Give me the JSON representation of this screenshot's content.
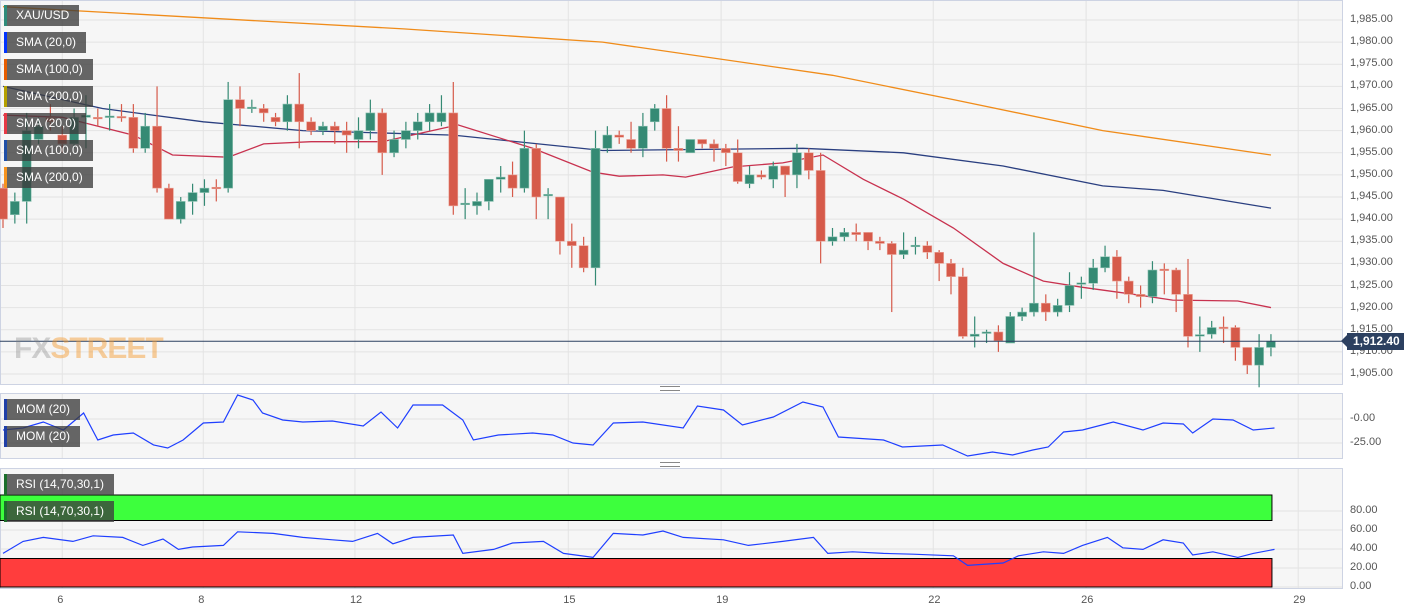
{
  "legend": {
    "main": [
      {
        "label": "XAU/USD",
        "color": "#2e8b7a"
      },
      {
        "label": "SMA (20,0)",
        "color": "#0033ff"
      },
      {
        "label": "SMA (100,0)",
        "color": "#e65c00"
      },
      {
        "label": "SMA (200,0)",
        "color": "#b5a000"
      },
      {
        "label": "SMA (20,0)",
        "color": "#e63946"
      },
      {
        "label": "SMA (100,0)",
        "color": "#1f4fa8"
      },
      {
        "label": "SMA (200,0)",
        "color": "#f7931e"
      }
    ],
    "mom": [
      {
        "label": "MOM (20)",
        "color": "#1f3fa8"
      },
      {
        "label": "MOM (20)",
        "color": "#1f3fa8"
      }
    ],
    "rsi": [
      {
        "label": "RSI (14,70,30,1)",
        "color": "#1a6e2a"
      },
      {
        "label": "RSI (14,70,30,1)",
        "color": "#1a6e2a"
      }
    ]
  },
  "watermark": {
    "a": "FX",
    "b": "STREET"
  },
  "current_price": "1,912.40",
  "chart_data": {
    "type": "candlestick",
    "symbol": "XAU/USD",
    "colors": {
      "up": "#358a74",
      "down": "#d65a4a",
      "sma20": "#c8324f",
      "sma100": "#2a3f80",
      "sma200": "#f08c1a",
      "mom": "#1f3fff",
      "rsi": "#1f3fff",
      "overbought": "#3dff3d",
      "oversold": "#ff3d3d",
      "price_line": "#2c4060"
    },
    "x_ticks": [
      {
        "label": "6",
        "idx": 5
      },
      {
        "label": "8",
        "idx": 16.9
      },
      {
        "label": "12",
        "idx": 29.7
      },
      {
        "label": "15",
        "idx": 47.7
      },
      {
        "label": "19",
        "idx": 60.6
      },
      {
        "label": "22",
        "idx": 78.5
      },
      {
        "label": "26",
        "idx": 91.4
      },
      {
        "label": "29",
        "idx": 109.3
      }
    ],
    "main_y_ticks": [
      "1,985.00",
      "1,980.00",
      "1,975.00",
      "1,970.00",
      "1,965.00",
      "1,960.00",
      "1,955.00",
      "1,950.00",
      "1,945.00",
      "1,940.00",
      "1,935.00",
      "1,930.00",
      "1,925.00",
      "1,920.00",
      "1,915.00",
      "1,910.00",
      "1,905.00"
    ],
    "main_y_values": [
      1985,
      1980,
      1975,
      1970,
      1965,
      1960,
      1955,
      1950,
      1945,
      1940,
      1935,
      1930,
      1925,
      1920,
      1915,
      1910,
      1905
    ],
    "price_current": 1912.4,
    "ohlc": [
      [
        1947,
        1948,
        1938,
        1940
      ],
      [
        1941,
        1946,
        1939,
        1944
      ],
      [
        1944,
        1964,
        1939,
        1960
      ],
      [
        1958,
        1963,
        1957,
        1961
      ],
      [
        1963,
        1966,
        1960,
        1962
      ],
      [
        1959,
        1961,
        1955,
        1957
      ],
      [
        1957,
        1965,
        1956,
        1963
      ],
      [
        1963,
        1968,
        1956,
        1963.5
      ],
      [
        1963,
        1965,
        1961,
        1962.8
      ],
      [
        1963,
        1966,
        1960,
        1963.3
      ],
      [
        1963.2,
        1966,
        1962,
        1963
      ],
      [
        1963,
        1966,
        1955,
        1956
      ],
      [
        1956,
        1964,
        1955,
        1961
      ],
      [
        1961,
        1970,
        1946,
        1947
      ],
      [
        1947,
        1948,
        1940,
        1940
      ],
      [
        1940,
        1945,
        1939,
        1944
      ],
      [
        1944,
        1948,
        1941,
        1946
      ],
      [
        1946,
        1949,
        1943,
        1947
      ],
      [
        1947.2,
        1949,
        1944,
        1947
      ],
      [
        1947,
        1971,
        1946,
        1967
      ],
      [
        1967,
        1970,
        1961,
        1965
      ],
      [
        1965,
        1967,
        1964,
        1965.3
      ],
      [
        1965,
        1966,
        1962,
        1964
      ],
      [
        1963,
        1964,
        1961,
        1962
      ],
      [
        1962,
        1968,
        1960,
        1966
      ],
      [
        1966,
        1973,
        1956,
        1962
      ],
      [
        1962,
        1963,
        1959,
        1960
      ],
      [
        1960,
        1962,
        1959,
        1961
      ],
      [
        1961,
        1962,
        1957,
        1960
      ],
      [
        1960,
        1962,
        1955,
        1959
      ],
      [
        1958,
        1963,
        1956,
        1960
      ],
      [
        1960,
        1967,
        1958,
        1964
      ],
      [
        1964,
        1965,
        1950,
        1955
      ],
      [
        1955,
        1960,
        1954,
        1958
      ],
      [
        1958,
        1962,
        1956,
        1960
      ],
      [
        1960,
        1964,
        1958,
        1962
      ],
      [
        1962,
        1966,
        1960,
        1964
      ],
      [
        1962,
        1968,
        1961,
        1964
      ],
      [
        1964,
        1971,
        1941,
        1943
      ],
      [
        1943.3,
        1947,
        1940,
        1943.6
      ],
      [
        1943,
        1946,
        1941,
        1944
      ],
      [
        1944,
        1949,
        1942,
        1949
      ],
      [
        1949,
        1952,
        1946,
        1949.5
      ],
      [
        1950,
        1953,
        1945,
        1947
      ],
      [
        1947,
        1960,
        1946,
        1956
      ],
      [
        1956,
        1957,
        1940,
        1945
      ],
      [
        1945.3,
        1947,
        1940,
        1945.6
      ],
      [
        1945,
        1945,
        1932,
        1935
      ],
      [
        1935,
        1939,
        1929,
        1934
      ],
      [
        1934,
        1936,
        1928,
        1929
      ],
      [
        1929,
        1960,
        1925,
        1956
      ],
      [
        1956,
        1961,
        1955,
        1959
      ],
      [
        1959,
        1960,
        1957,
        1958.5
      ],
      [
        1958,
        1962,
        1955,
        1956
      ],
      [
        1956,
        1964,
        1954,
        1961
      ],
      [
        1962,
        1966,
        1960,
        1965
      ],
      [
        1965,
        1968,
        1953,
        1956
      ],
      [
        1956,
        1961,
        1953,
        1955.5
      ],
      [
        1955,
        1958,
        1955,
        1958
      ],
      [
        1958,
        1958,
        1956,
        1957
      ],
      [
        1957,
        1958,
        1953,
        1956
      ],
      [
        1956,
        1957,
        1952,
        1955
      ],
      [
        1955,
        1958,
        1948,
        1948.5
      ],
      [
        1948,
        1952,
        1947,
        1950
      ],
      [
        1950,
        1951,
        1949,
        1949.5
      ],
      [
        1949,
        1953,
        1947,
        1952
      ],
      [
        1952,
        1952,
        1945,
        1950
      ],
      [
        1950,
        1957,
        1947,
        1955
      ],
      [
        1955,
        1956,
        1949,
        1951
      ],
      [
        1951,
        1955,
        1930,
        1935
      ],
      [
        1935,
        1938,
        1934,
        1936
      ],
      [
        1936,
        1938,
        1935,
        1937
      ],
      [
        1937,
        1939,
        1935,
        1936.5
      ],
      [
        1937,
        1937,
        1933,
        1935
      ],
      [
        1935,
        1936,
        1933,
        1934.5
      ],
      [
        1934.5,
        1935,
        1919,
        1932
      ],
      [
        1932,
        1937,
        1931,
        1933
      ],
      [
        1933.8,
        1936,
        1932,
        1934.1
      ],
      [
        1934,
        1935,
        1931,
        1932.5
      ],
      [
        1932.5,
        1933,
        1926,
        1930
      ],
      [
        1930,
        1931,
        1923,
        1927
      ],
      [
        1927,
        1929,
        1913,
        1913.5
      ],
      [
        1913.5,
        1918,
        1911,
        1914
      ],
      [
        1914.2,
        1915,
        1912,
        1914.5
      ],
      [
        1914.5,
        1916,
        1910,
        1912.5
      ],
      [
        1912,
        1919,
        1912,
        1918
      ],
      [
        1918,
        1920,
        1917,
        1919
      ],
      [
        1919,
        1937,
        1918,
        1921
      ],
      [
        1921,
        1923,
        1917,
        1919
      ],
      [
        1919,
        1922,
        1918,
        1920.5
      ],
      [
        1920.5,
        1928,
        1919,
        1925
      ],
      [
        1925.3,
        1927,
        1922,
        1925.6
      ],
      [
        1925.5,
        1931,
        1924,
        1929
      ],
      [
        1929,
        1934,
        1928,
        1931.5
      ],
      [
        1931.5,
        1933,
        1922,
        1926
      ],
      [
        1926,
        1927,
        1921,
        1923
      ],
      [
        1923,
        1925,
        1920,
        1922.5
      ],
      [
        1922.5,
        1930.5,
        1921,
        1928.5
      ],
      [
        1928.7,
        1930,
        1923,
        1928.4
      ],
      [
        1928.5,
        1929,
        1919,
        1923
      ],
      [
        1923,
        1931,
        1911,
        1913.5
      ],
      [
        1913.6,
        1918,
        1910,
        1913.9
      ],
      [
        1914,
        1917,
        1913,
        1915.5
      ],
      [
        1915.6,
        1918,
        1912,
        1915.4
      ],
      [
        1915.5,
        1916,
        1908,
        1911
      ],
      [
        1911,
        1911,
        1905,
        1907
      ],
      [
        1907,
        1914,
        1902,
        1911
      ],
      [
        1911,
        1914,
        1909,
        1912.4
      ]
    ],
    "sma20": [
      [
        0,
        1963.5
      ],
      [
        5,
        1963
      ],
      [
        11,
        1959
      ],
      [
        14.3,
        1954.5
      ],
      [
        19,
        1954
      ],
      [
        22,
        1957
      ],
      [
        26,
        1957.5
      ],
      [
        32,
        1957.5
      ],
      [
        38.4,
        1961.3
      ],
      [
        44.7,
        1956
      ],
      [
        49.8,
        1950.6
      ],
      [
        52,
        1949.7
      ],
      [
        55.7,
        1950
      ],
      [
        57.6,
        1949.5
      ],
      [
        61.6,
        1951.8
      ],
      [
        65.8,
        1952.7
      ],
      [
        69.2,
        1954.5
      ],
      [
        72.6,
        1949
      ],
      [
        76,
        1944.5
      ],
      [
        80.2,
        1938
      ],
      [
        84.4,
        1930
      ],
      [
        87.8,
        1926
      ],
      [
        91.1,
        1924.6
      ],
      [
        95.4,
        1923
      ],
      [
        98.7,
        1921.7
      ],
      [
        101.3,
        1921.6
      ],
      [
        104.2,
        1921.5
      ],
      [
        107,
        1920
      ]
    ],
    "sma100": [
      [
        0,
        1970
      ],
      [
        8.4,
        1965
      ],
      [
        16.9,
        1962
      ],
      [
        25.3,
        1960
      ],
      [
        38,
        1959
      ],
      [
        50.6,
        1955.5
      ],
      [
        67.5,
        1956
      ],
      [
        76,
        1955
      ],
      [
        84.4,
        1952
      ],
      [
        92.8,
        1947.5
      ],
      [
        97.9,
        1946.5
      ],
      [
        107,
        1942.5
      ]
    ],
    "sma200": [
      [
        0,
        1988
      ],
      [
        33.8,
        1983
      ],
      [
        50.6,
        1980
      ],
      [
        70,
        1972.5
      ],
      [
        80.2,
        1967
      ],
      [
        92.8,
        1960
      ],
      [
        107,
        1954.5
      ]
    ],
    "mom": {
      "y_ticks": [
        "-0.00",
        "-25.00"
      ],
      "y_values": [
        0,
        -25
      ],
      "ylim": [
        -40,
        27
      ],
      "values": [
        [
          0,
          -11.5
        ],
        [
          1.7,
          -9.4
        ],
        [
          3.4,
          -3.1
        ],
        [
          5.1,
          -11.5
        ],
        [
          6.8,
          6.3
        ],
        [
          8,
          -21.9
        ],
        [
          9.3,
          -16.7
        ],
        [
          11,
          -14.6
        ],
        [
          12.7,
          -27
        ],
        [
          13.9,
          -30.2
        ],
        [
          15.2,
          -21.9
        ],
        [
          16.9,
          -4.2
        ],
        [
          18.6,
          -3.1
        ],
        [
          19.8,
          25
        ],
        [
          21.1,
          19.8
        ],
        [
          21.9,
          6.3
        ],
        [
          23.6,
          -1
        ],
        [
          25.3,
          -3.1
        ],
        [
          27.8,
          -2.1
        ],
        [
          30.4,
          -7.3
        ],
        [
          31.9,
          7.3
        ],
        [
          33.3,
          -9.4
        ],
        [
          34.6,
          14.6
        ],
        [
          37.1,
          14.6
        ],
        [
          38.8,
          -1
        ],
        [
          39.7,
          -21.9
        ],
        [
          41.8,
          -16.7
        ],
        [
          44.7,
          -14.6
        ],
        [
          46.4,
          -16.7
        ],
        [
          48.1,
          -25
        ],
        [
          49.8,
          -27.1
        ],
        [
          51.5,
          -4.2
        ],
        [
          54,
          -3.1
        ],
        [
          57.4,
          -9.4
        ],
        [
          58.6,
          13.5
        ],
        [
          60.8,
          9.4
        ],
        [
          62.4,
          -6.3
        ],
        [
          65,
          2.1
        ],
        [
          67.5,
          17.7
        ],
        [
          69.2,
          12.5
        ],
        [
          70.5,
          -18.8
        ],
        [
          74.3,
          -21.9
        ],
        [
          75.9,
          -29.2
        ],
        [
          79.3,
          -27.1
        ],
        [
          81.4,
          -38.5
        ],
        [
          83.5,
          -34.4
        ],
        [
          85.2,
          -37.5
        ],
        [
          86.9,
          -32.3
        ],
        [
          88.2,
          -29.2
        ],
        [
          89.5,
          -13.5
        ],
        [
          91.1,
          -11.5
        ],
        [
          93.7,
          -3.1
        ],
        [
          96.2,
          -11.5
        ],
        [
          97.9,
          -4.2
        ],
        [
          99.6,
          -5.2
        ],
        [
          100.4,
          -14.6
        ],
        [
          102.1,
          0
        ],
        [
          103.8,
          -1
        ],
        [
          105.5,
          -11.5
        ],
        [
          107.3,
          -9.4
        ]
      ]
    },
    "rsi": {
      "y_ticks": [
        "80.00",
        "60.00",
        "40.00",
        "20.00",
        "0.00"
      ],
      "y_values": [
        80,
        60,
        40,
        20,
        0
      ],
      "ylim": [
        0,
        100
      ],
      "overbought": [
        70,
        100
      ],
      "oversold": [
        0,
        30
      ],
      "values": [
        [
          0,
          35.4
        ],
        [
          1.7,
          48
        ],
        [
          3.4,
          52.2
        ],
        [
          5.9,
          48
        ],
        [
          7.6,
          53.9
        ],
        [
          10.1,
          52.2
        ],
        [
          11.8,
          43.8
        ],
        [
          13.5,
          50.5
        ],
        [
          14.8,
          39.6
        ],
        [
          16,
          42.1
        ],
        [
          18.6,
          43.8
        ],
        [
          19.8,
          58.1
        ],
        [
          22.8,
          56.4
        ],
        [
          25.3,
          52.2
        ],
        [
          27.8,
          49.7
        ],
        [
          29.5,
          48
        ],
        [
          31.6,
          56.4
        ],
        [
          32.9,
          45.5
        ],
        [
          34.6,
          52.2
        ],
        [
          38,
          54.7
        ],
        [
          38.8,
          35.4
        ],
        [
          41.4,
          39.6
        ],
        [
          43,
          46.3
        ],
        [
          45.6,
          48
        ],
        [
          47.3,
          35.4
        ],
        [
          49.8,
          31.2
        ],
        [
          51.5,
          56.4
        ],
        [
          54,
          54.7
        ],
        [
          55.7,
          58.9
        ],
        [
          57.4,
          52.2
        ],
        [
          60.8,
          49.7
        ],
        [
          62.9,
          43.8
        ],
        [
          65.8,
          48
        ],
        [
          68.4,
          52.2
        ],
        [
          69.6,
          35.4
        ],
        [
          71.7,
          37.1
        ],
        [
          74.3,
          35.4
        ],
        [
          76.8,
          34.5
        ],
        [
          80.2,
          32.8
        ],
        [
          81.4,
          22.7
        ],
        [
          84.4,
          25.3
        ],
        [
          85.7,
          32.8
        ],
        [
          87.8,
          37.1
        ],
        [
          89.5,
          35.4
        ],
        [
          91.1,
          43.8
        ],
        [
          93.2,
          52.2
        ],
        [
          94.5,
          41.3
        ],
        [
          96.2,
          39.6
        ],
        [
          97.9,
          49.7
        ],
        [
          99.6,
          46.3
        ],
        [
          100.4,
          33.7
        ],
        [
          102.1,
          37.1
        ],
        [
          104.2,
          31.2
        ],
        [
          105.5,
          35.4
        ],
        [
          107.3,
          39.6
        ]
      ]
    }
  }
}
